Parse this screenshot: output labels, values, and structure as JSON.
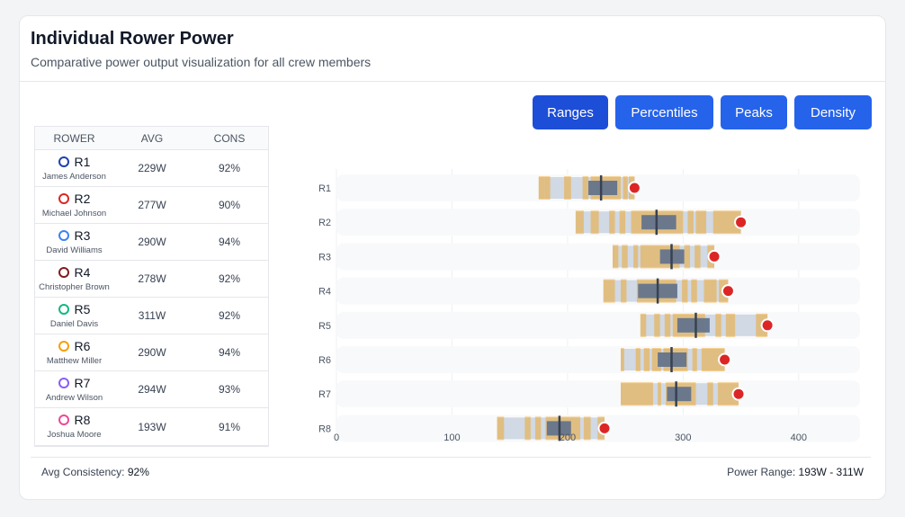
{
  "header": {
    "title": "Individual Rower Power",
    "subtitle": "Comparative power output visualization for all crew members"
  },
  "toolbar": {
    "buttons": [
      {
        "label": "Ranges",
        "active": true
      },
      {
        "label": "Percentiles",
        "active": false
      },
      {
        "label": "Peaks",
        "active": false
      },
      {
        "label": "Density",
        "active": false
      }
    ]
  },
  "table": {
    "headers": [
      "ROWER",
      "AVG",
      "CONS"
    ],
    "rows": [
      {
        "id": "R1",
        "name": "James Anderson",
        "avg": "229W",
        "cons": "92%",
        "color": "#1e40af"
      },
      {
        "id": "R2",
        "name": "Michael Johnson",
        "avg": "277W",
        "cons": "90%",
        "color": "#dc2626"
      },
      {
        "id": "R3",
        "name": "David Williams",
        "avg": "290W",
        "cons": "94%",
        "color": "#3b82f6"
      },
      {
        "id": "R4",
        "name": "Christopher Brown",
        "avg": "278W",
        "cons": "92%",
        "color": "#7f1d1d"
      },
      {
        "id": "R5",
        "name": "Daniel Davis",
        "avg": "311W",
        "cons": "92%",
        "color": "#10b981"
      },
      {
        "id": "R6",
        "name": "Matthew Miller",
        "avg": "290W",
        "cons": "94%",
        "color": "#f59e0b"
      },
      {
        "id": "R7",
        "name": "Andrew Wilson",
        "avg": "294W",
        "cons": "93%",
        "color": "#8b5cf6"
      },
      {
        "id": "R8",
        "name": "Joshua Moore",
        "avg": "193W",
        "cons": "91%",
        "color": "#ec4899"
      }
    ]
  },
  "footer": {
    "left_label": "Avg Consistency:",
    "left_value": "92%",
    "right_label": "Power Range:",
    "right_value": "193W - 311W"
  },
  "chart_data": {
    "type": "bar",
    "orientation": "horizontal",
    "categories": [
      "R1",
      "R2",
      "R3",
      "R4",
      "R5",
      "R6",
      "R7",
      "R8"
    ],
    "xlim": [
      0,
      450
    ],
    "xticks": [
      0,
      100,
      200,
      300,
      400
    ],
    "grid": true,
    "series": [
      {
        "name": "range",
        "values": [
          [
            175,
            258
          ],
          [
            207,
            350
          ],
          [
            239,
            327
          ],
          [
            231,
            339
          ],
          [
            263,
            373
          ],
          [
            246,
            336
          ],
          [
            246,
            348
          ],
          [
            139,
            232
          ]
        ]
      },
      {
        "name": "iqr",
        "values": [
          [
            218,
            243
          ],
          [
            264,
            294
          ],
          [
            280,
            301
          ],
          [
            261,
            295
          ],
          [
            295,
            323
          ],
          [
            278,
            303
          ],
          [
            286,
            307
          ],
          [
            182,
            203
          ]
        ]
      },
      {
        "name": "median",
        "values": [
          229,
          277,
          290,
          278,
          311,
          290,
          294,
          193
        ]
      },
      {
        "name": "peak",
        "values": [
          258,
          350,
          327,
          339,
          373,
          336,
          348,
          232
        ]
      }
    ],
    "density_bands": [
      [
        [
          175,
          180
        ],
        [
          180,
          185
        ],
        [
          197,
          203
        ],
        [
          213,
          218
        ],
        [
          220,
          246
        ],
        [
          248,
          252
        ],
        [
          253,
          258
        ]
      ],
      [
        [
          207,
          214
        ],
        [
          220,
          227
        ],
        [
          236,
          241
        ],
        [
          245,
          250
        ],
        [
          255,
          300
        ],
        [
          304,
          309
        ],
        [
          311,
          320
        ],
        [
          326,
          350
        ]
      ],
      [
        [
          239,
          244
        ],
        [
          247,
          252
        ],
        [
          257,
          261
        ],
        [
          263,
          297
        ],
        [
          301,
          306
        ],
        [
          310,
          315
        ],
        [
          321,
          327
        ]
      ],
      [
        [
          231,
          241
        ],
        [
          246,
          251
        ],
        [
          260,
          294
        ],
        [
          299,
          304
        ],
        [
          307,
          312
        ],
        [
          318,
          329
        ],
        [
          331,
          339
        ]
      ],
      [
        [
          263,
          268
        ],
        [
          275,
          280
        ],
        [
          284,
          289
        ],
        [
          291,
          319
        ],
        [
          328,
          333
        ],
        [
          337,
          345
        ],
        [
          363,
          373
        ]
      ],
      [
        [
          246,
          249
        ],
        [
          259,
          263
        ],
        [
          266,
          271
        ],
        [
          273,
          281
        ],
        [
          283,
          304
        ],
        [
          308,
          312
        ],
        [
          316,
          336
        ]
      ],
      [
        [
          246,
          274
        ],
        [
          278,
          281
        ],
        [
          285,
          311
        ],
        [
          321,
          326
        ],
        [
          330,
          348
        ]
      ],
      [
        [
          139,
          145
        ],
        [
          163,
          168
        ],
        [
          172,
          177
        ],
        [
          181,
          211
        ],
        [
          214,
          220
        ],
        [
          226,
          232
        ]
      ]
    ]
  }
}
